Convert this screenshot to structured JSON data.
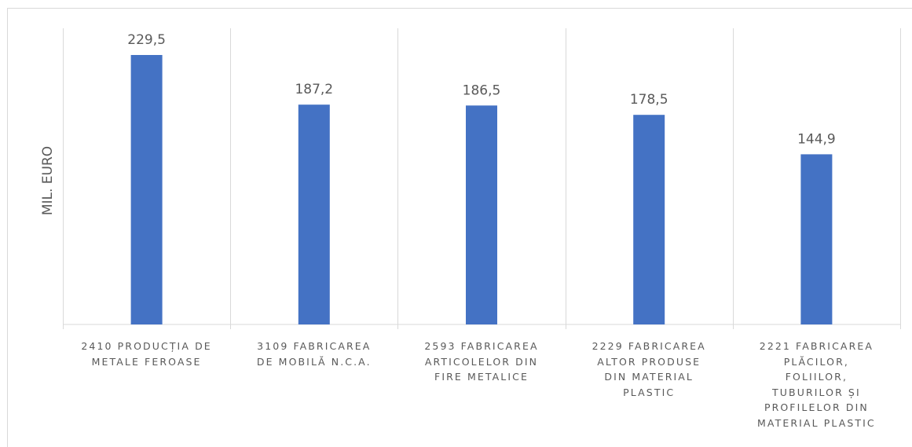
{
  "chart_data": {
    "type": "bar",
    "title": "",
    "xlabel": "",
    "ylabel": "MIL. EURO",
    "categories": [
      "2410 Producția de metale feroase",
      "3109 Fabricarea de mobilă n.c.a.",
      "2593 Fabricarea articolelor din fire metalice",
      "2229 Fabricarea altor produse din material plastic",
      "2221 Fabricarea plăcilor, foliilor, tuburilor și profilelor din material plastic"
    ],
    "category_lines": [
      [
        "2410 PRODUCȚIA DE",
        "METALE FEROASE"
      ],
      [
        "3109 FABRICAREA",
        "DE MOBILĂ N.C.A."
      ],
      [
        "2593 FABRICAREA",
        "ARTICOLELOR DIN",
        "FIRE METALICE"
      ],
      [
        "2229 FABRICAREA",
        "ALTOR PRODUSE",
        "DIN MATERIAL",
        "PLASTIC"
      ],
      [
        "2221 FABRICAREA",
        "PLĂCILOR,",
        "FOLIILOR,",
        "TUBURILOR ȘI",
        "PROFILELOR DIN",
        "MATERIAL PLASTIC"
      ]
    ],
    "values": [
      229.5,
      187.2,
      186.5,
      178.5,
      144.9
    ],
    "data_labels": [
      "229,5",
      "187,2",
      "186,5",
      "178,5",
      "144,9"
    ],
    "ylim": [
      0,
      250
    ],
    "grid": "vertical category separators",
    "legend": "none",
    "bar_color": "#4472c4",
    "grid_color": "#d9d9d9",
    "label_color": "#595959"
  }
}
